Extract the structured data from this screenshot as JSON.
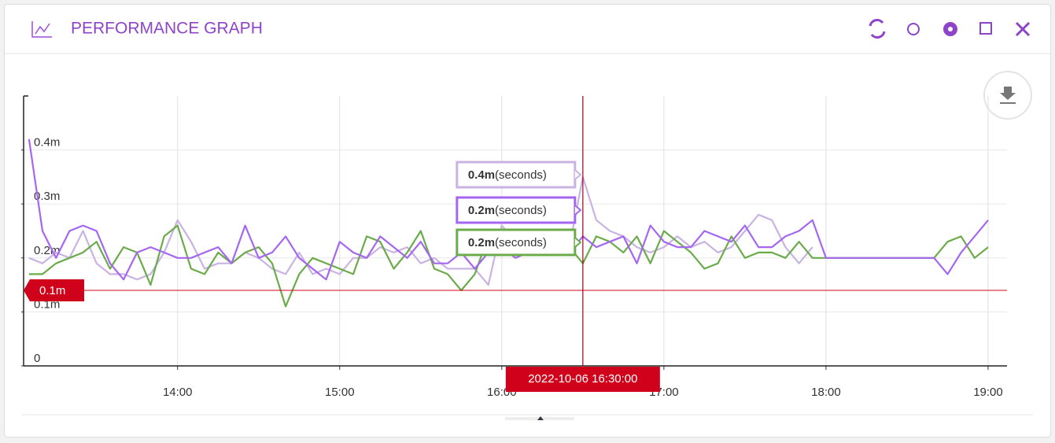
{
  "chart_data": {
    "type": "line",
    "title": "PERFORMANCE GRAPH",
    "x": [
      "13:05",
      "13:10",
      "13:15",
      "13:20",
      "13:25",
      "13:30",
      "13:35",
      "13:40",
      "13:45",
      "13:50",
      "13:55",
      "14:00",
      "14:05",
      "14:10",
      "14:15",
      "14:20",
      "14:25",
      "14:30",
      "14:35",
      "14:40",
      "14:45",
      "14:50",
      "14:55",
      "15:00",
      "15:05",
      "15:10",
      "15:15",
      "15:20",
      "15:25",
      "15:30",
      "15:35",
      "15:40",
      "15:45",
      "15:50",
      "15:55",
      "16:00",
      "16:05",
      "16:10",
      "16:15",
      "16:20",
      "16:25",
      "16:30",
      "16:35",
      "16:40",
      "16:45",
      "16:50",
      "16:55",
      "17:00",
      "17:05",
      "17:10",
      "17:15",
      "17:20",
      "17:25",
      "17:30",
      "17:35",
      "17:40",
      "17:45",
      "17:50",
      "17:55",
      "18:00",
      "18:05",
      "18:10",
      "18:15",
      "18:20",
      "18:25",
      "18:30",
      "18:35",
      "18:40",
      "18:45",
      "18:50",
      "18:55",
      "19:00"
    ],
    "series": [
      {
        "color": "#a566f0",
        "values": [
          0.42,
          0.25,
          0.2,
          0.25,
          0.26,
          0.25,
          0.19,
          0.16,
          0.21,
          0.22,
          0.21,
          0.2,
          0.2,
          0.21,
          0.22,
          0.19,
          0.26,
          0.2,
          0.21,
          0.24,
          0.2,
          0.18,
          0.16,
          0.23,
          0.21,
          0.2,
          0.24,
          0.22,
          0.2,
          0.23,
          0.19,
          0.19,
          0.21,
          0.18,
          0.21,
          0.22,
          0.2,
          0.21,
          0.24,
          0.22,
          0.21,
          0.24,
          0.22,
          0.23,
          0.24,
          0.19,
          0.26,
          0.23,
          0.22,
          0.22,
          0.25,
          0.24,
          0.23,
          0.26,
          0.22,
          0.22,
          0.24,
          0.25,
          0.27,
          0.2,
          0.2,
          0.2,
          0.2,
          0.2,
          0.2,
          0.2,
          0.2,
          0.2,
          0.17,
          0.21,
          0.24,
          0.27
        ]
      },
      {
        "color": "#c9b3e3",
        "values": [
          0.2,
          0.19,
          0.21,
          0.2,
          0.25,
          0.19,
          0.17,
          0.17,
          0.16,
          0.17,
          0.21,
          0.27,
          0.23,
          0.18,
          0.19,
          0.19,
          0.21,
          0.2,
          0.18,
          0.17,
          0.21,
          0.17,
          0.18,
          0.17,
          0.2,
          0.2,
          0.22,
          0.21,
          0.22,
          0.19,
          0.2,
          0.18,
          0.18,
          0.18,
          0.15,
          0.26,
          0.23,
          0.22,
          0.24,
          0.22,
          0.22,
          0.35,
          0.27,
          0.25,
          0.24,
          0.22,
          0.21,
          0.22,
          0.24,
          0.22,
          0.23,
          0.21,
          0.22,
          0.25,
          0.28,
          0.27,
          0.22,
          0.19,
          0.22,
          null,
          null,
          null,
          null,
          null,
          null,
          null,
          null,
          null,
          null,
          null,
          null,
          null
        ]
      },
      {
        "color": "#6cab4a",
        "values": [
          0.17,
          0.17,
          0.19,
          0.2,
          0.21,
          0.23,
          0.18,
          0.22,
          0.21,
          0.15,
          0.24,
          0.26,
          0.18,
          0.17,
          0.21,
          0.19,
          0.21,
          0.22,
          0.19,
          0.11,
          0.17,
          0.2,
          0.19,
          0.18,
          0.17,
          0.24,
          0.23,
          0.18,
          0.21,
          0.25,
          0.18,
          0.17,
          0.14,
          0.17,
          0.24,
          0.22,
          0.21,
          0.23,
          0.23,
          0.24,
          0.22,
          0.19,
          0.24,
          0.23,
          0.21,
          0.24,
          0.19,
          0.25,
          0.23,
          0.21,
          0.18,
          0.19,
          0.24,
          0.2,
          0.21,
          0.21,
          0.2,
          0.23,
          0.2,
          0.2,
          0.2,
          0.2,
          0.2,
          0.2,
          0.2,
          0.2,
          0.2,
          0.2,
          0.23,
          0.24,
          0.2,
          0.22
        ]
      }
    ],
    "xlim": [
      "13:03",
      "19:07"
    ],
    "xticks": [
      "14:00",
      "15:00",
      "16:00",
      "17:00",
      "18:00",
      "19:00"
    ],
    "ylim": [
      0,
      0.5
    ],
    "yticks": [
      0,
      {
        "value": 0.1,
        "label": "0.1m"
      },
      {
        "value": 0.2,
        "label": "0.2m"
      },
      {
        "value": 0.3,
        "label": "0.3m"
      },
      {
        "value": 0.4,
        "label": "0.4m"
      }
    ],
    "grid": true,
    "threshold": {
      "value": 0.14,
      "label": "0.1m",
      "color": "#d0021b"
    },
    "tooltip": {
      "x": "2022-10-06 16:30:00",
      "crosshair": "16:30",
      "order": [
        1,
        0,
        2
      ],
      "labels": [
        "0.2m",
        "0.4m",
        "0.2m"
      ],
      "unit": "(seconds)"
    }
  }
}
